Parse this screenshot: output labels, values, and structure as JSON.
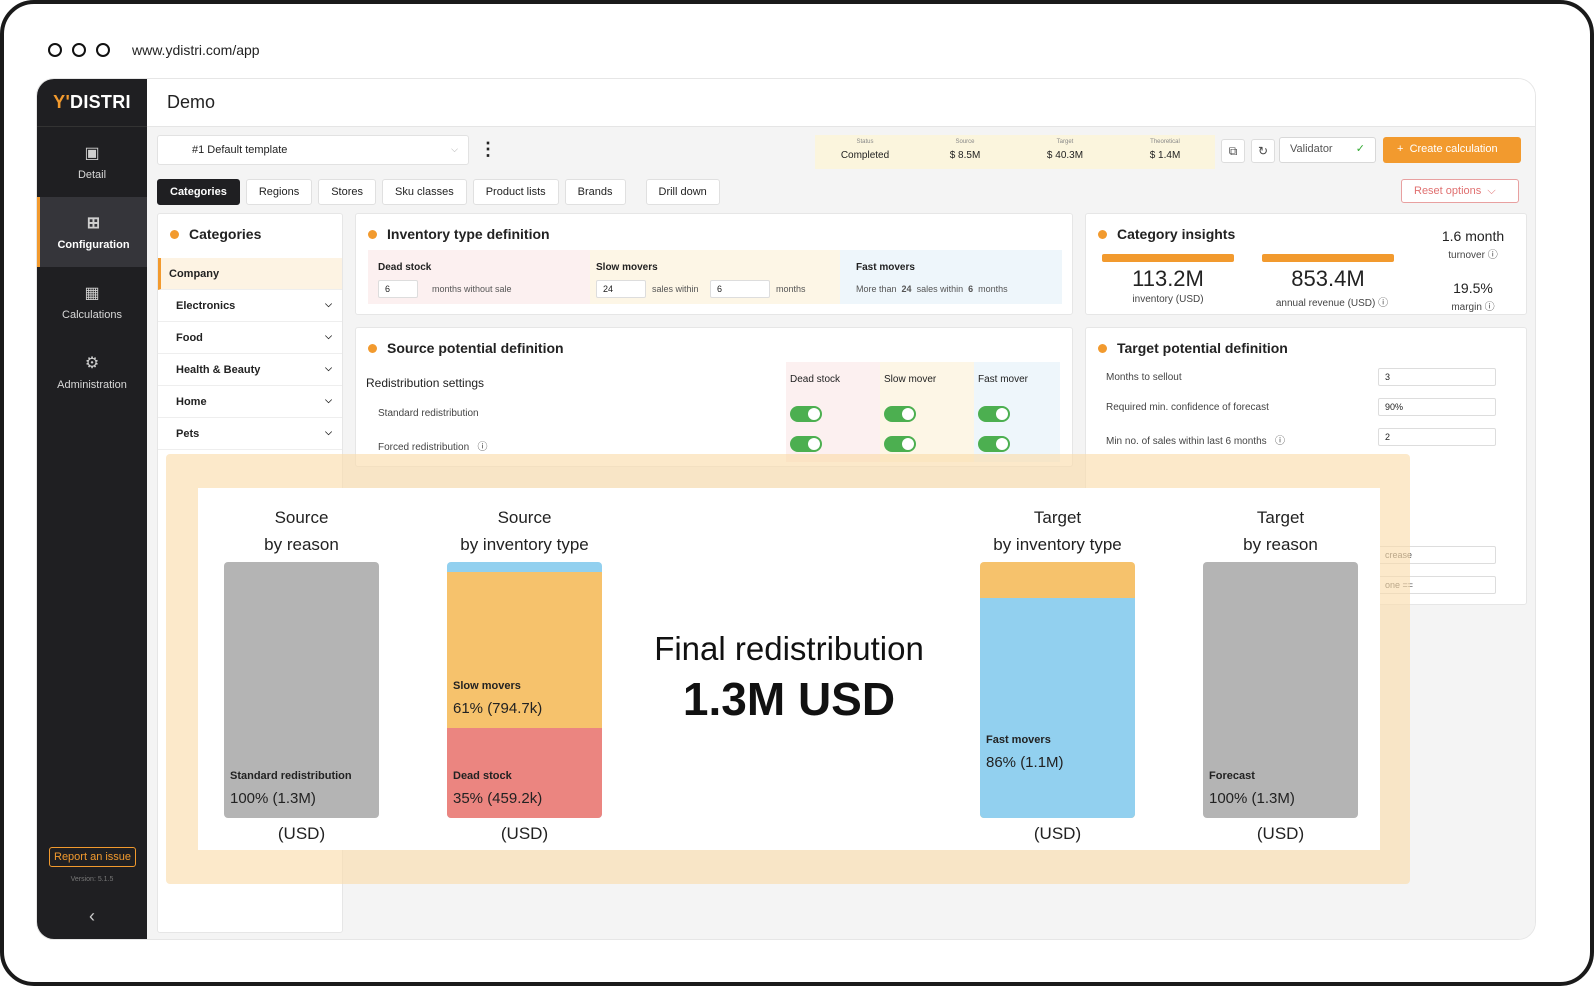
{
  "browser": {
    "url": "www.ydistri.com/app"
  },
  "sidebar": {
    "logo_apostrophe": "Y'",
    "logo_text": "DISTRI",
    "items": [
      {
        "label": "Detail",
        "icon": "detail-icon"
      },
      {
        "label": "Configuration",
        "icon": "configuration-icon"
      },
      {
        "label": "Calculations",
        "icon": "calculations-icon"
      },
      {
        "label": "Administration",
        "icon": "gear-icon"
      }
    ],
    "report": "Report an issue",
    "version": "Version: 5.1.5"
  },
  "header": {
    "title": "Demo"
  },
  "toolbar": {
    "template": "#1  Default template",
    "stats": [
      {
        "key": "Status",
        "value": "Completed"
      },
      {
        "key": "Source",
        "value": "$ 8.5M"
      },
      {
        "key": "Target",
        "value": "$ 40.3M"
      },
      {
        "key": "Theoretical",
        "value": "$ 1.4M"
      }
    ],
    "validator": "Validator",
    "create": "Create calculation"
  },
  "tabs": [
    "Categories",
    "Regions",
    "Stores",
    "Sku classes",
    "Product lists",
    "Brands",
    "Drill down"
  ],
  "reset": "Reset options",
  "categories": {
    "title": "Categories",
    "company": "Company",
    "items": [
      "Electronics",
      "Food",
      "Health & Beauty",
      "Home",
      "Pets"
    ]
  },
  "inventory_def": {
    "title": "Inventory type definition",
    "dead_title": "Dead stock",
    "dead_value": "6",
    "dead_text": "months without sale",
    "slow_title": "Slow movers",
    "slow_value1": "24",
    "slow_text1": "sales within",
    "slow_value2": "6",
    "slow_text2": "months",
    "fast_title": "Fast movers",
    "fast_pre": "More than",
    "fast_n1": "24",
    "fast_mid": "sales within",
    "fast_n2": "6",
    "fast_post": "months"
  },
  "insights": {
    "title": "Category insights",
    "inventory_value": "113.2M",
    "inventory_label": "inventory (USD)",
    "revenue_value": "853.4M",
    "revenue_label": "annual revenue (USD)",
    "turnover_value": "1.6 month",
    "turnover_label": "turnover",
    "margin_value": "19.5%",
    "margin_label": "margin"
  },
  "source_def": {
    "title": "Source potential definition",
    "subtitle": "Redistribution settings",
    "cols": [
      "Dead stock",
      "Slow mover",
      "Fast mover"
    ],
    "rows": [
      "Standard redistribution",
      "Forced redistribution"
    ]
  },
  "target_def": {
    "title": "Target potential definition",
    "rows": [
      {
        "label": "Months to sellout",
        "value": "3"
      },
      {
        "label": "Required min. confidence of forecast",
        "value": "90%"
      },
      {
        "label": "Min no. of sales within last 6 months",
        "value": "2"
      }
    ],
    "partial1": "crease",
    "partial2": "one =="
  },
  "redistribution": {
    "columns": [
      {
        "line1": "Source",
        "line2": "by reason",
        "unit": "(USD)",
        "segments": [
          {
            "label": "Standard redistribution",
            "value": "100% (1.3M)",
            "share": 1.0,
            "color": "#b4b4b4"
          }
        ]
      },
      {
        "line1": "Source",
        "line2": "by inventory type",
        "unit": "(USD)",
        "segments": [
          {
            "label": "Slow movers",
            "value": "61% (794.7k)",
            "share": 0.61,
            "color": "#f6c26c"
          },
          {
            "label": "Dead stock",
            "value": "35% (459.2k)",
            "share": 0.35,
            "color": "#eb8580"
          }
        ]
      },
      {
        "line1": "Target",
        "line2": "by inventory type",
        "unit": "(USD)",
        "segments": [
          {
            "label": "Fast movers",
            "value": "86% (1.1M)",
            "share": 0.86,
            "color": "#92d0ef"
          }
        ]
      },
      {
        "line1": "Target",
        "line2": "by reason",
        "unit": "(USD)",
        "segments": [
          {
            "label": "Forecast",
            "value": "100% (1.3M)",
            "share": 1.0,
            "color": "#b4b4b4"
          }
        ]
      }
    ],
    "final_title": "Final redistribution",
    "final_value": "1.3M USD"
  },
  "colors": {
    "accent": "#f29a2e",
    "sidebar": "#1f1f22",
    "toggle": "#4caf50"
  }
}
